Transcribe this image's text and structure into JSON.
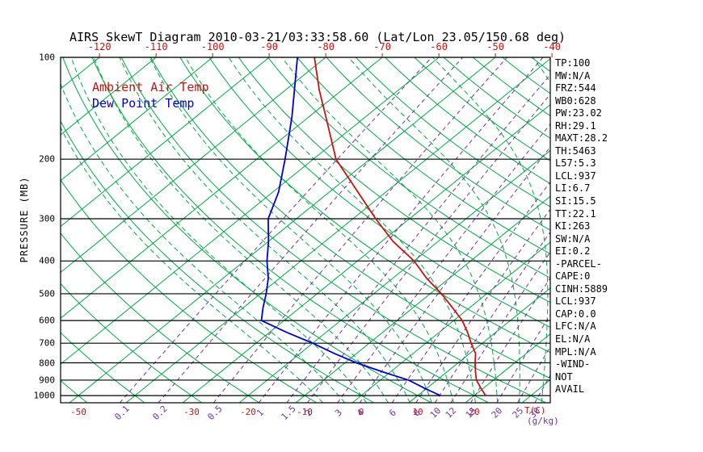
{
  "colors": {
    "temp": "#cc1111",
    "dew": "#0000cc",
    "isolines_green": "#00a843",
    "mixing_purple": "#7030a0",
    "axis_black": "#000000"
  },
  "y_axis": {
    "label": "PRESSURE (MB)",
    "ticks": [
      100,
      200,
      300,
      400,
      500,
      600,
      700,
      800,
      900,
      1000
    ]
  },
  "x_axis_top": {
    "ticks": [
      -120,
      -110,
      -100,
      -90,
      -80,
      -70,
      -60,
      -50,
      -40
    ]
  },
  "x_axis_bottom": {
    "temp_ticks": [
      -50,
      -30,
      -20,
      -10,
      0,
      10,
      20
    ],
    "temp_unit": "T(C)",
    "mr_ticks": [
      0.1,
      0.2,
      0.5,
      1,
      1.5,
      2,
      3,
      4,
      6,
      8,
      10,
      12,
      15,
      20,
      25,
      30
    ],
    "mr_unit": "(g/kg)"
  },
  "right_panel": {
    "lines": [
      "TP:100",
      "MW:N/A",
      "FRZ:544",
      "WB0:628",
      "PW:23.02",
      "RH:29.1",
      "MAXT:28.2",
      "TH:5463",
      "L57:5.3",
      "LCL:937",
      "LI:6.7",
      "SI:15.5",
      "TT:22.1",
      "KI:263",
      "SW:N/A",
      "EI:0.2",
      "-PARCEL-",
      "CAPE:0",
      "CINH:5889",
      "LCL:937",
      "CAP:0.0",
      "LFC:N/A",
      "EL:N/A",
      "MPL:N/A",
      "-WIND-",
      "NOT",
      "AVAIL"
    ]
  },
  "chart_data": {
    "type": "line",
    "variant": "skewt-log-p",
    "title": "AIRS SkewT Diagram 2010-03-21/03:33:58.60 (Lat/Lon 23.05/150.68 deg)",
    "ylabel": "PRESSURE (MB)",
    "x_units": {
      "temp": "T(C)",
      "mixing_ratio": "(g/kg)"
    },
    "pressure_range_mb": [
      100,
      1050
    ],
    "pressure_ticks_mb": [
      100,
      200,
      300,
      400,
      500,
      600,
      700,
      800,
      900,
      1000
    ],
    "top_temp_ticks_c": [
      -120,
      -110,
      -100,
      -90,
      -80,
      -70,
      -60,
      -50,
      -40
    ],
    "bottom_temp_ticks_c": [
      -50,
      -30,
      -20,
      -10,
      0,
      10,
      20
    ],
    "isotherms_c": {
      "min": -160,
      "max": 40,
      "step": 10
    },
    "dry_adiabats_theta_c": {
      "min": -60,
      "max": 180,
      "step": 10
    },
    "moist_adiabats_c": [
      -8,
      -4,
      0,
      4,
      8,
      12,
      16,
      20,
      24,
      28,
      32,
      36
    ],
    "mixing_ratio_lines_g_per_kg": [
      0.1,
      0.2,
      0.5,
      1,
      1.5,
      2,
      3,
      4,
      6,
      8,
      10,
      12,
      15,
      20,
      25,
      30
    ],
    "series": [
      {
        "name": "Ambient Air Temp",
        "color": "#cc1111",
        "points": [
          {
            "p": 100,
            "t": -82
          },
          {
            "p": 125,
            "t": -74
          },
          {
            "p": 150,
            "t": -67
          },
          {
            "p": 200,
            "t": -56
          },
          {
            "p": 250,
            "t": -45
          },
          {
            "p": 300,
            "t": -36
          },
          {
            "p": 350,
            "t": -28
          },
          {
            "p": 400,
            "t": -20
          },
          {
            "p": 450,
            "t": -14
          },
          {
            "p": 500,
            "t": -8
          },
          {
            "p": 550,
            "t": -3
          },
          {
            "p": 600,
            "t": 1.5
          },
          {
            "p": 650,
            "t": 5
          },
          {
            "p": 700,
            "t": 8
          },
          {
            "p": 750,
            "t": 11
          },
          {
            "p": 800,
            "t": 13
          },
          {
            "p": 850,
            "t": 15
          },
          {
            "p": 900,
            "t": 17
          },
          {
            "p": 950,
            "t": 19.5
          },
          {
            "p": 1000,
            "t": 22
          }
        ]
      },
      {
        "name": "Dew Point Temp",
        "color": "#0000cc",
        "points": [
          {
            "p": 100,
            "t": -85
          },
          {
            "p": 150,
            "t": -73
          },
          {
            "p": 200,
            "t": -65
          },
          {
            "p": 250,
            "t": -59
          },
          {
            "p": 300,
            "t": -55
          },
          {
            "p": 350,
            "t": -50
          },
          {
            "p": 400,
            "t": -46
          },
          {
            "p": 450,
            "t": -42
          },
          {
            "p": 500,
            "t": -39
          },
          {
            "p": 550,
            "t": -36.5
          },
          {
            "p": 600,
            "t": -34
          },
          {
            "p": 650,
            "t": -27
          },
          {
            "p": 700,
            "t": -20
          },
          {
            "p": 750,
            "t": -14
          },
          {
            "p": 800,
            "t": -8
          },
          {
            "p": 850,
            "t": -1.5
          },
          {
            "p": 900,
            "t": 5
          },
          {
            "p": 950,
            "t": 9.5
          },
          {
            "p": 1000,
            "t": 14
          }
        ]
      }
    ]
  }
}
